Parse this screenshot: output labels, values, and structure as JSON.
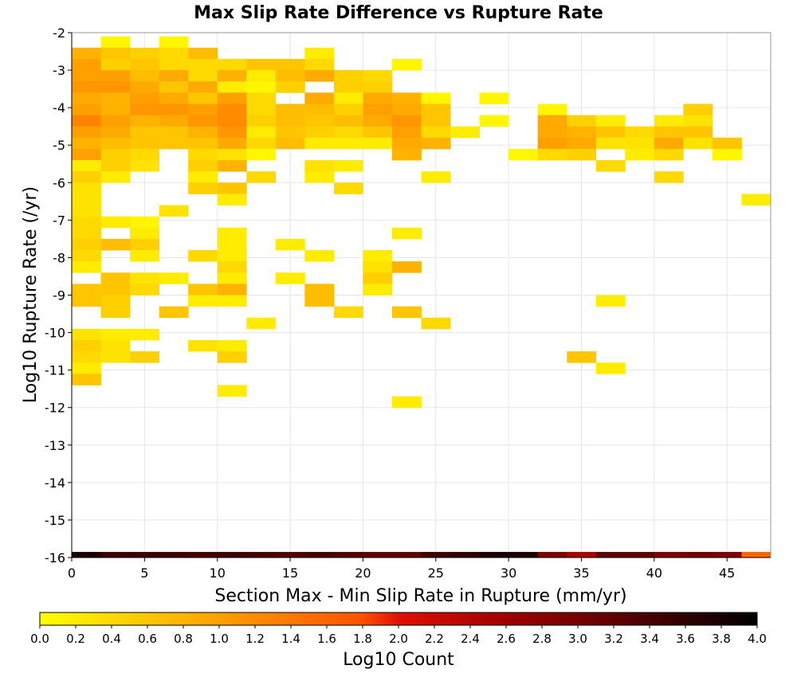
{
  "chart_data": {
    "type": "heatmap",
    "title": "Max Slip Rate Difference vs Rupture Rate",
    "xlabel": "Section Max - Min Slip Rate in Rupture (mm/yr)",
    "ylabel": "Log10 Rupture Rate (/yr)",
    "xlim": [
      0,
      48
    ],
    "ylim": [
      -16,
      -2
    ],
    "x_ticks": [
      "0",
      "5",
      "10",
      "15",
      "20",
      "25",
      "30",
      "35",
      "40",
      "45"
    ],
    "y_ticks": [
      "-2",
      "-3",
      "-4",
      "-5",
      "-6",
      "-7",
      "-8",
      "-9",
      "-10",
      "-11",
      "-12",
      "-13",
      "-14",
      "-15",
      "-16"
    ],
    "bin_width_x": 2,
    "bin_height_y": 0.3,
    "grid": true,
    "cells_note": "each cell: [x_bin_start, y_bin_top, log10_count]",
    "cells": [
      [
        2,
        -2.1,
        0.1
      ],
      [
        6,
        -2.1,
        0.1
      ],
      [
        0,
        -2.4,
        0.8
      ],
      [
        2,
        -2.4,
        0.6
      ],
      [
        4,
        -2.4,
        0.5
      ],
      [
        6,
        -2.4,
        0.4
      ],
      [
        8,
        -2.4,
        0.7
      ],
      [
        16,
        -2.4,
        0.2
      ],
      [
        0,
        -2.7,
        1.0
      ],
      [
        2,
        -2.7,
        0.5
      ],
      [
        4,
        -2.7,
        0.6
      ],
      [
        6,
        -2.7,
        0.4
      ],
      [
        8,
        -2.7,
        0.4
      ],
      [
        10,
        -2.7,
        0.4
      ],
      [
        12,
        -2.7,
        0.6
      ],
      [
        14,
        -2.7,
        0.6
      ],
      [
        16,
        -2.7,
        0.4
      ],
      [
        22,
        -2.7,
        0.1
      ],
      [
        0,
        -3.0,
        1.0
      ],
      [
        2,
        -3.0,
        1.0
      ],
      [
        4,
        -3.0,
        0.7
      ],
      [
        6,
        -3.0,
        0.9
      ],
      [
        8,
        -3.0,
        0.4
      ],
      [
        10,
        -3.0,
        0.8
      ],
      [
        12,
        -3.0,
        0.2
      ],
      [
        14,
        -3.0,
        0.7
      ],
      [
        16,
        -3.0,
        0.9
      ],
      [
        18,
        -3.0,
        0.5
      ],
      [
        20,
        -3.0,
        0.4
      ],
      [
        0,
        -3.3,
        1.1
      ],
      [
        2,
        -3.3,
        1.1
      ],
      [
        4,
        -3.3,
        0.9
      ],
      [
        6,
        -3.3,
        0.6
      ],
      [
        8,
        -3.3,
        0.9
      ],
      [
        10,
        -3.3,
        0.2
      ],
      [
        12,
        -3.3,
        0.1
      ],
      [
        14,
        -3.3,
        0.5
      ],
      [
        18,
        -3.3,
        0.5
      ],
      [
        20,
        -3.3,
        0.5
      ],
      [
        0,
        -3.6,
        0.9
      ],
      [
        2,
        -3.6,
        0.8
      ],
      [
        4,
        -3.6,
        1.0
      ],
      [
        6,
        -3.6,
        0.9
      ],
      [
        8,
        -3.6,
        0.6
      ],
      [
        10,
        -3.6,
        1.0
      ],
      [
        12,
        -3.6,
        0.4
      ],
      [
        16,
        -3.6,
        0.9
      ],
      [
        18,
        -3.6,
        0.2
      ],
      [
        20,
        -3.6,
        0.9
      ],
      [
        22,
        -3.6,
        0.8
      ],
      [
        24,
        -3.6,
        0.1
      ],
      [
        28,
        -3.6,
        0.1
      ],
      [
        0,
        -3.9,
        1.0
      ],
      [
        2,
        -3.9,
        0.8
      ],
      [
        4,
        -3.9,
        1.1
      ],
      [
        6,
        -3.9,
        1.1
      ],
      [
        8,
        -3.9,
        1.0
      ],
      [
        10,
        -3.9,
        1.2
      ],
      [
        12,
        -3.9,
        0.4
      ],
      [
        14,
        -3.9,
        0.7
      ],
      [
        16,
        -3.9,
        0.7
      ],
      [
        18,
        -3.9,
        0.5
      ],
      [
        20,
        -3.9,
        1.0
      ],
      [
        22,
        -3.9,
        0.9
      ],
      [
        24,
        -3.9,
        0.6
      ],
      [
        32,
        -3.9,
        0.1
      ],
      [
        42,
        -3.9,
        0.5
      ],
      [
        0,
        -4.2,
        1.3
      ],
      [
        2,
        -4.2,
        1.0
      ],
      [
        4,
        -4.2,
        0.8
      ],
      [
        6,
        -4.2,
        0.9
      ],
      [
        8,
        -4.2,
        1.1
      ],
      [
        10,
        -4.2,
        1.2
      ],
      [
        12,
        -4.2,
        0.5
      ],
      [
        14,
        -4.2,
        0.7
      ],
      [
        16,
        -4.2,
        0.6
      ],
      [
        18,
        -4.2,
        0.7
      ],
      [
        20,
        -4.2,
        0.9
      ],
      [
        22,
        -4.2,
        1.1
      ],
      [
        24,
        -4.2,
        0.6
      ],
      [
        28,
        -4.2,
        0.1
      ],
      [
        32,
        -4.2,
        0.9
      ],
      [
        34,
        -4.2,
        0.5
      ],
      [
        36,
        -4.2,
        0.2
      ],
      [
        40,
        -4.2,
        0.2
      ],
      [
        42,
        -4.2,
        0.3
      ],
      [
        0,
        -4.5,
        1.0
      ],
      [
        2,
        -4.5,
        0.9
      ],
      [
        4,
        -4.5,
        0.6
      ],
      [
        6,
        -4.5,
        0.6
      ],
      [
        8,
        -4.5,
        0.8
      ],
      [
        10,
        -4.5,
        1.1
      ],
      [
        12,
        -4.5,
        0.2
      ],
      [
        14,
        -4.5,
        0.6
      ],
      [
        16,
        -4.5,
        0.5
      ],
      [
        18,
        -4.5,
        0.4
      ],
      [
        20,
        -4.5,
        0.6
      ],
      [
        22,
        -4.5,
        1.0
      ],
      [
        24,
        -4.5,
        0.4
      ],
      [
        26,
        -4.5,
        0.2
      ],
      [
        32,
        -4.5,
        0.9
      ],
      [
        34,
        -4.5,
        0.8
      ],
      [
        36,
        -4.5,
        0.6
      ],
      [
        38,
        -4.5,
        0.4
      ],
      [
        40,
        -4.5,
        0.6
      ],
      [
        42,
        -4.5,
        0.6
      ],
      [
        0,
        -4.8,
        0.8
      ],
      [
        2,
        -4.8,
        0.7
      ],
      [
        4,
        -4.8,
        0.6
      ],
      [
        6,
        -4.8,
        0.6
      ],
      [
        8,
        -4.8,
        0.6
      ],
      [
        10,
        -4.8,
        0.9
      ],
      [
        12,
        -4.8,
        0.4
      ],
      [
        14,
        -4.8,
        0.7
      ],
      [
        16,
        -4.8,
        0.2
      ],
      [
        18,
        -4.8,
        0.2
      ],
      [
        20,
        -4.8,
        0.2
      ],
      [
        22,
        -4.8,
        0.9
      ],
      [
        24,
        -4.8,
        0.8
      ],
      [
        32,
        -4.8,
        1.0
      ],
      [
        34,
        -4.8,
        0.9
      ],
      [
        36,
        -4.8,
        0.3
      ],
      [
        38,
        -4.8,
        0.3
      ],
      [
        40,
        -4.8,
        0.9
      ],
      [
        42,
        -4.8,
        0.3
      ],
      [
        44,
        -4.8,
        0.6
      ],
      [
        0,
        -5.1,
        1.0
      ],
      [
        2,
        -5.1,
        0.5
      ],
      [
        4,
        -5.1,
        0.4
      ],
      [
        8,
        -5.1,
        0.4
      ],
      [
        10,
        -5.1,
        0.3
      ],
      [
        12,
        -5.1,
        0.1
      ],
      [
        22,
        -5.1,
        0.8
      ],
      [
        30,
        -5.1,
        0.1
      ],
      [
        32,
        -5.1,
        0.4
      ],
      [
        34,
        -5.1,
        0.5
      ],
      [
        38,
        -5.1,
        0.2
      ],
      [
        40,
        -5.1,
        0.4
      ],
      [
        44,
        -5.1,
        0.1
      ],
      [
        0,
        -5.4,
        0.2
      ],
      [
        2,
        -5.4,
        0.5
      ],
      [
        4,
        -5.4,
        0.3
      ],
      [
        8,
        -5.4,
        0.5
      ],
      [
        10,
        -5.4,
        0.8
      ],
      [
        16,
        -5.4,
        0.3
      ],
      [
        18,
        -5.4,
        0.2
      ],
      [
        36,
        -5.4,
        0.4
      ],
      [
        0,
        -5.7,
        0.5
      ],
      [
        2,
        -5.7,
        0.2
      ],
      [
        8,
        -5.7,
        0.2
      ],
      [
        12,
        -5.7,
        0.4
      ],
      [
        16,
        -5.7,
        0.2
      ],
      [
        24,
        -5.7,
        0.2
      ],
      [
        40,
        -5.7,
        0.4
      ],
      [
        0,
        -6.0,
        0.3
      ],
      [
        8,
        -6.0,
        0.5
      ],
      [
        10,
        -6.0,
        0.6
      ],
      [
        18,
        -6.0,
        0.4
      ],
      [
        0,
        -6.3,
        0.3
      ],
      [
        10,
        -6.3,
        0.2
      ],
      [
        46,
        -6.3,
        0.2
      ],
      [
        0,
        -6.6,
        0.3
      ],
      [
        6,
        -6.6,
        0.3
      ],
      [
        0,
        -6.9,
        0.4
      ],
      [
        2,
        -6.9,
        0.2
      ],
      [
        4,
        -6.9,
        0.1
      ],
      [
        0,
        -7.2,
        0.4
      ],
      [
        4,
        -7.2,
        0.2
      ],
      [
        10,
        -7.2,
        0.2
      ],
      [
        22,
        -7.2,
        0.2
      ],
      [
        0,
        -7.5,
        0.5
      ],
      [
        2,
        -7.5,
        0.7
      ],
      [
        4,
        -7.5,
        0.5
      ],
      [
        10,
        -7.5,
        0.2
      ],
      [
        14,
        -7.5,
        0.2
      ],
      [
        0,
        -7.8,
        0.4
      ],
      [
        4,
        -7.8,
        0.2
      ],
      [
        8,
        -7.8,
        0.4
      ],
      [
        10,
        -7.8,
        0.2
      ],
      [
        16,
        -7.8,
        0.2
      ],
      [
        20,
        -7.8,
        0.2
      ],
      [
        0,
        -8.1,
        0.2
      ],
      [
        10,
        -8.1,
        0.4
      ],
      [
        20,
        -8.1,
        0.3
      ],
      [
        22,
        -8.1,
        0.8
      ],
      [
        2,
        -8.4,
        0.6
      ],
      [
        4,
        -8.4,
        0.3
      ],
      [
        6,
        -8.4,
        0.2
      ],
      [
        10,
        -8.4,
        0.2
      ],
      [
        14,
        -8.4,
        0.2
      ],
      [
        20,
        -8.4,
        0.5
      ],
      [
        0,
        -8.7,
        0.6
      ],
      [
        2,
        -8.7,
        0.6
      ],
      [
        4,
        -8.7,
        0.4
      ],
      [
        8,
        -8.7,
        0.6
      ],
      [
        10,
        -8.7,
        0.8
      ],
      [
        16,
        -8.7,
        0.7
      ],
      [
        20,
        -8.7,
        0.2
      ],
      [
        0,
        -9.0,
        0.6
      ],
      [
        2,
        -9.0,
        0.5
      ],
      [
        8,
        -9.0,
        0.2
      ],
      [
        10,
        -9.0,
        0.2
      ],
      [
        16,
        -9.0,
        0.7
      ],
      [
        36,
        -9.0,
        0.2
      ],
      [
        2,
        -9.3,
        0.5
      ],
      [
        6,
        -9.3,
        0.6
      ],
      [
        18,
        -9.3,
        0.4
      ],
      [
        22,
        -9.3,
        0.6
      ],
      [
        12,
        -9.6,
        0.2
      ],
      [
        24,
        -9.6,
        0.4
      ],
      [
        0,
        -9.9,
        0.3
      ],
      [
        2,
        -9.9,
        0.2
      ],
      [
        4,
        -9.9,
        0.2
      ],
      [
        0,
        -10.2,
        0.5
      ],
      [
        2,
        -10.2,
        0.3
      ],
      [
        8,
        -10.2,
        0.3
      ],
      [
        10,
        -10.2,
        0.2
      ],
      [
        0,
        -10.5,
        0.4
      ],
      [
        2,
        -10.5,
        0.3
      ],
      [
        4,
        -10.5,
        0.5
      ],
      [
        10,
        -10.5,
        0.5
      ],
      [
        34,
        -10.5,
        0.6
      ],
      [
        0,
        -10.8,
        0.2
      ],
      [
        36,
        -10.8,
        0.2
      ],
      [
        0,
        -11.1,
        0.6
      ],
      [
        10,
        -11.4,
        0.2
      ],
      [
        22,
        -11.7,
        0.2
      ]
    ],
    "bottom_row": {
      "y_range": [
        -16,
        -15.85
      ],
      "values_by_2mm_bin": [
        3.8,
        3.5,
        3.5,
        3.5,
        3.4,
        3.5,
        3.4,
        3.3,
        3.4,
        3.3,
        3.2,
        3.2,
        3.5,
        3.6,
        3.8,
        3.8,
        2.9,
        2.5,
        3.2,
        3.2,
        2.9,
        3.0,
        2.9,
        1.6
      ]
    },
    "colorbar": {
      "label": "Log10 Count",
      "range": [
        0.0,
        4.0
      ],
      "ticks": [
        "0.0",
        "0.2",
        "0.4",
        "0.6",
        "0.8",
        "1.0",
        "1.2",
        "1.4",
        "1.6",
        "1.8",
        "2.0",
        "2.2",
        "2.4",
        "2.6",
        "2.8",
        "3.0",
        "3.2",
        "3.4",
        "3.6",
        "3.8",
        "4.0"
      ],
      "color_stops": [
        [
          0.0,
          "#ffff00"
        ],
        [
          1.0,
          "#ffa000"
        ],
        [
          1.8,
          "#ff5000"
        ],
        [
          2.0,
          "#e01000"
        ],
        [
          2.6,
          "#a00000"
        ],
        [
          3.2,
          "#600000"
        ],
        [
          4.0,
          "#000000"
        ]
      ]
    },
    "colors": {
      "grid": "#e6e6e6",
      "axis": "#000000",
      "frame": "#9a9a9a",
      "background": "#ffffff"
    }
  }
}
